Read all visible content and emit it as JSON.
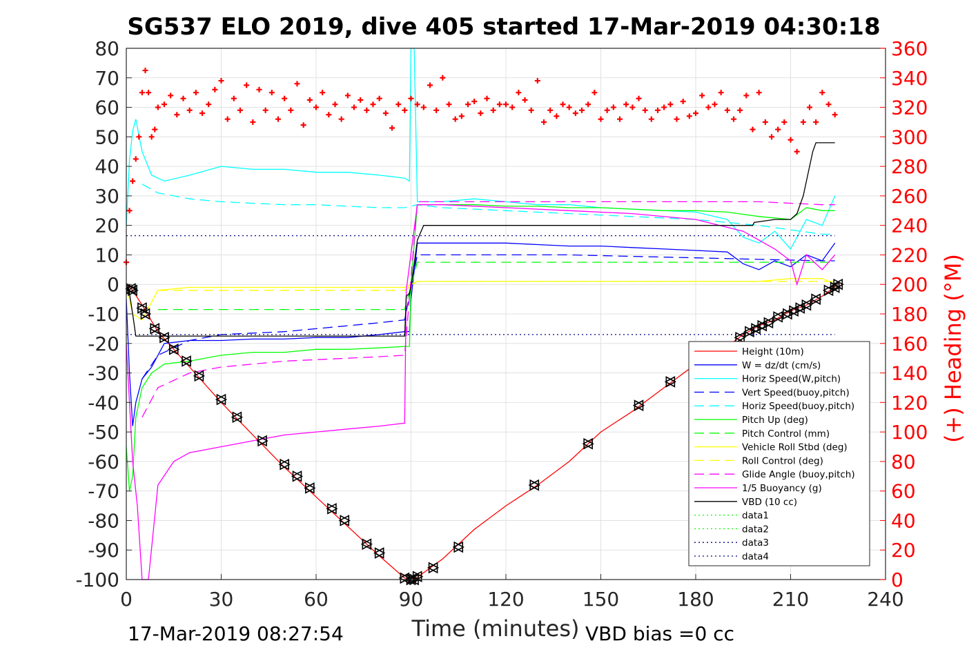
{
  "chart_data": {
    "type": "line",
    "title": "SG537 ELO 2019, dive 405 started 17-Mar-2019 04:30:18",
    "xlabel": "Time (minutes)",
    "ylabel_right": "(+) Heading (°M)",
    "xlim": [
      0,
      240
    ],
    "ylim": [
      -100,
      80
    ],
    "ylim_right": [
      0,
      360
    ],
    "x_ticks": [
      "0",
      "30",
      "60",
      "90",
      "120",
      "150",
      "180",
      "210",
      "240"
    ],
    "y_ticks_left": [
      "80",
      "70",
      "60",
      "50",
      "40",
      "30",
      "20",
      "10",
      "0",
      "-10",
      "-20",
      "-30",
      "-40",
      "-50",
      "-60",
      "-70",
      "-80",
      "-90",
      "-100"
    ],
    "y_ticks_right": [
      "360",
      "340",
      "320",
      "300",
      "280",
      "260",
      "240",
      "220",
      "200",
      "180",
      "160",
      "140",
      "120",
      "100",
      "80",
      "60",
      "40",
      "20",
      "0"
    ],
    "grid": true,
    "legend_position": "bottom-right",
    "footer_left": "17-Mar-2019 08:27:54",
    "footer_right": "VBD bias =0 cc",
    "colors": {
      "height": "#ff0000",
      "w": "#0000ff",
      "hspeed": "#00ffff",
      "pitch": "#00ff00",
      "roll": "#ffff00",
      "glide": "#ff00ff",
      "vbd": "#000000",
      "heading": "#ff0000",
      "data3": "#000080",
      "data4": "#000080"
    },
    "series": [
      {
        "name": "Height (10m)",
        "style": "solid",
        "color": "#ff0000",
        "x": [
          0,
          2,
          5,
          10,
          20,
          30,
          40,
          50,
          60,
          70,
          80,
          88,
          91,
          100,
          110,
          120,
          130,
          140,
          150,
          160,
          170,
          180,
          190,
          195,
          200,
          205,
          210,
          215,
          220,
          225
        ],
        "y": [
          0,
          -2,
          -7,
          -16,
          -28,
          -40,
          -51,
          -62,
          -72,
          -82,
          -92,
          -99.5,
          -100,
          -93,
          -83,
          -75,
          -68,
          -60,
          -50,
          -43,
          -35,
          -27,
          -21,
          -17,
          -14,
          -12,
          -9,
          -7,
          -4,
          0
        ]
      },
      {
        "name": "W = dz/dt (cm/s)",
        "style": "solid",
        "color": "#0000ff",
        "x": [
          0,
          1,
          2,
          3,
          5,
          8,
          12,
          20,
          30,
          40,
          50,
          60,
          70,
          80,
          88,
          89.5,
          90,
          92,
          100,
          110,
          120,
          130,
          140,
          150,
          160,
          170,
          180,
          190,
          195,
          200,
          205,
          210,
          215,
          220,
          224
        ],
        "y": [
          -5,
          -30,
          -48,
          -40,
          -32,
          -28,
          -20,
          -19,
          -19,
          -18.5,
          -18.5,
          -18,
          -18,
          -17,
          -16,
          -16,
          -5,
          14,
          14,
          14,
          14,
          13.5,
          13,
          13,
          12.5,
          12,
          11.5,
          11,
          7,
          5,
          8,
          6,
          10,
          8,
          14
        ]
      },
      {
        "name": "Horiz Speed(W,pitch)",
        "style": "solid",
        "color": "#00ffff",
        "x": [
          0,
          1,
          2,
          3,
          5,
          8,
          12,
          20,
          30,
          40,
          50,
          60,
          70,
          80,
          88,
          89.5,
          90,
          91,
          92,
          100,
          110,
          120,
          130,
          140,
          150,
          160,
          170,
          180,
          190,
          195,
          200,
          205,
          210,
          215,
          220,
          224
        ],
        "y": [
          20,
          42,
          52,
          56,
          45,
          37,
          35,
          37,
          40,
          39,
          39,
          38,
          38,
          37,
          36,
          35,
          80,
          80,
          28,
          28,
          29,
          28,
          27,
          27,
          26,
          25.5,
          25,
          24.5,
          22,
          16,
          14,
          18,
          12,
          22,
          20,
          30
        ]
      },
      {
        "name": "Vert Speed(buoy,pitch)",
        "style": "dashed",
        "color": "#0000ff",
        "x": [
          5,
          10,
          20,
          30,
          40,
          50,
          60,
          70,
          80,
          88,
          92,
          100,
          120,
          140,
          160,
          180,
          200,
          220,
          224
        ],
        "y": [
          -32,
          -24,
          -19,
          -17,
          -16.5,
          -16,
          -15,
          -14,
          -13,
          -12,
          10,
          10,
          10,
          10,
          9.5,
          9,
          8.5,
          8,
          8
        ]
      },
      {
        "name": "Horiz Speed(buoy,pitch)",
        "style": "dashed",
        "color": "#00ffff",
        "x": [
          5,
          10,
          20,
          30,
          40,
          50,
          60,
          70,
          80,
          88,
          92,
          100,
          120,
          140,
          160,
          180,
          200,
          220,
          224
        ],
        "y": [
          34,
          31,
          29,
          28,
          27.5,
          27,
          27,
          26.5,
          26,
          26,
          27,
          26,
          25,
          24,
          23,
          22,
          20,
          17,
          17
        ]
      },
      {
        "name": "Pitch Up (deg)",
        "style": "solid",
        "color": "#00ff00",
        "x": [
          0,
          1,
          2,
          3,
          5,
          8,
          12,
          20,
          30,
          40,
          50,
          60,
          70,
          80,
          88,
          89.5,
          90,
          92,
          100,
          110,
          120,
          130,
          140,
          150,
          160,
          170,
          180,
          190,
          200,
          210,
          215,
          220,
          224
        ],
        "y": [
          -55,
          -70,
          -65,
          -45,
          -35,
          -30,
          -27,
          -26,
          -24,
          -23,
          -23,
          -22,
          -22,
          -21.5,
          -21,
          -21,
          0,
          27,
          27,
          27,
          26.5,
          26.5,
          26,
          26,
          25.5,
          25,
          25,
          24.5,
          23,
          22,
          26,
          25,
          25
        ]
      },
      {
        "name": "Pitch Control (mm)",
        "style": "dashed",
        "color": "#00ff00",
        "x": [
          10,
          30,
          60,
          88,
          92,
          120,
          150,
          180,
          210,
          224
        ],
        "y": [
          -8.5,
          -8.5,
          -8.5,
          -8.5,
          7.5,
          7.5,
          7.5,
          7.5,
          7.5,
          7.5
        ]
      },
      {
        "name": "Vehicle Roll Stbd (deg)",
        "style": "solid",
        "color": "#ffff00",
        "x": [
          0,
          2,
          5,
          10,
          20,
          30,
          40,
          50,
          60,
          70,
          80,
          88,
          92,
          100,
          120,
          140,
          160,
          180,
          190,
          200,
          210,
          220,
          224
        ],
        "y": [
          0,
          -10,
          -12,
          -2,
          -1,
          -1,
          -1,
          -1,
          -1,
          -1,
          -1,
          -1,
          1,
          1,
          1,
          1,
          1,
          1,
          1,
          1,
          2,
          2,
          0
        ]
      },
      {
        "name": "Roll Control (deg)",
        "style": "dashed",
        "color": "#ffff00",
        "x": [
          10,
          30,
          60,
          88,
          92,
          120,
          150,
          180,
          210,
          224
        ],
        "y": [
          -2,
          -2,
          -2,
          -2,
          1,
          1,
          1,
          1,
          1,
          1
        ]
      },
      {
        "name": "Glide Angle (buoy,pitch)",
        "style": "dashed",
        "color": "#ff00ff",
        "x": [
          5,
          10,
          20,
          30,
          40,
          50,
          60,
          70,
          80,
          88,
          92,
          100,
          120,
          140,
          160,
          180,
          200,
          220,
          224
        ],
        "y": [
          -45,
          -35,
          -30,
          -28,
          -27,
          -26,
          -25.5,
          -25,
          -24.5,
          -24,
          28,
          28,
          28,
          28,
          28,
          28,
          28,
          27,
          27
        ]
      },
      {
        "name": "1/5 Buoyancy (g)",
        "style": "solid",
        "color": "#ff00ff",
        "x": [
          0,
          2,
          3.5,
          5,
          7,
          10,
          15,
          20,
          30,
          40,
          50,
          60,
          70,
          80,
          88,
          88.5,
          92,
          100,
          120,
          140,
          160,
          180,
          195,
          200,
          205,
          210,
          212,
          215,
          220,
          224
        ],
        "y": [
          -20,
          -60,
          -75,
          -100,
          -100,
          -68,
          -60,
          -57,
          -55,
          -53,
          -51,
          -50,
          -49,
          -48,
          -47,
          -2,
          27,
          27,
          26,
          25,
          24,
          22,
          18,
          15,
          12,
          8,
          0,
          10,
          5,
          10
        ]
      },
      {
        "name": "VBD (10 cc)",
        "style": "solid",
        "color": "#000000",
        "x": [
          0,
          1,
          2,
          3,
          10,
          30,
          60,
          88,
          88.5,
          89.5,
          90,
          92,
          94,
          120,
          150,
          180,
          190,
          198,
          198.5,
          205,
          210,
          212,
          214,
          216,
          217,
          218,
          224
        ],
        "y": [
          0,
          -3,
          -10,
          -17.5,
          -17.5,
          -17.5,
          -17.5,
          -17.5,
          -4,
          -3,
          -1,
          15,
          20,
          20,
          20,
          20,
          20,
          20,
          21,
          22,
          22,
          24,
          30,
          40,
          45,
          48,
          48
        ]
      },
      {
        "name": "data1",
        "style": "dotted",
        "color": "#00ff00",
        "x": [],
        "y": []
      },
      {
        "name": "data2",
        "style": "dotted",
        "color": "#00ff00",
        "x": [],
        "y": []
      },
      {
        "name": "data3",
        "style": "dotted",
        "color": "#000080",
        "x": [
          0,
          224
        ],
        "y": [
          16.5,
          16.5
        ]
      },
      {
        "name": "data4",
        "style": "dotted",
        "color": "#000080",
        "x": [
          0,
          224
        ],
        "y": [
          -17,
          -17
        ]
      }
    ],
    "heading": {
      "axis": "right",
      "marker": "+",
      "color": "#ff0000",
      "x": [
        0,
        1,
        2,
        3,
        4,
        5,
        6,
        7,
        8,
        9,
        10,
        12,
        14,
        16,
        18,
        20,
        22,
        24,
        26,
        28,
        30,
        32,
        34,
        36,
        38,
        40,
        42,
        44,
        46,
        48,
        50,
        52,
        54,
        56,
        58,
        60,
        62,
        64,
        66,
        68,
        70,
        72,
        74,
        76,
        78,
        80,
        82,
        84,
        86,
        88,
        90,
        92,
        94,
        96,
        98,
        100,
        102,
        104,
        106,
        108,
        110,
        112,
        114,
        116,
        118,
        120,
        122,
        124,
        126,
        128,
        130,
        132,
        134,
        136,
        138,
        140,
        142,
        144,
        146,
        148,
        150,
        152,
        154,
        156,
        158,
        160,
        162,
        164,
        166,
        168,
        170,
        172,
        174,
        176,
        178,
        180,
        182,
        184,
        186,
        188,
        190,
        192,
        194,
        196,
        198,
        200,
        202,
        204,
        206,
        208,
        210,
        212,
        214,
        216,
        218,
        220,
        222,
        224
      ],
      "y": [
        215,
        250,
        270,
        285,
        300,
        330,
        345,
        330,
        300,
        305,
        320,
        322,
        328,
        315,
        326,
        318,
        330,
        316,
        322,
        332,
        338,
        312,
        326,
        318,
        335,
        310,
        332,
        318,
        330,
        312,
        326,
        318,
        336,
        308,
        325,
        320,
        330,
        315,
        322,
        312,
        328,
        320,
        325,
        318,
        322,
        326,
        316,
        306,
        322,
        318,
        326,
        322,
        320,
        335,
        318,
        340,
        322,
        312,
        314,
        322,
        324,
        316,
        326,
        318,
        322,
        322,
        320,
        330,
        325,
        318,
        338,
        310,
        318,
        314,
        322,
        320,
        316,
        318,
        322,
        330,
        312,
        318,
        320,
        312,
        322,
        320,
        326,
        318,
        312,
        318,
        320,
        322,
        312,
        324,
        314,
        316,
        328,
        320,
        322,
        330,
        318,
        312,
        318,
        328,
        305,
        330,
        310,
        300,
        305,
        310,
        298,
        290,
        310,
        320,
        310,
        330,
        322,
        315
      ]
    },
    "markers": {
      "marker": "triangle",
      "color": "#000000",
      "x": [
        1.5,
        2,
        5,
        6,
        9,
        12,
        15,
        19,
        23,
        30,
        35,
        43,
        50,
        54,
        58,
        65,
        69,
        76,
        80,
        88,
        90,
        91,
        92,
        97,
        105,
        129,
        146,
        162,
        172,
        194,
        197,
        199,
        201,
        203,
        206,
        209,
        211,
        213,
        215,
        218,
        222,
        224,
        225
      ],
      "y": [
        -1.5,
        -2,
        -8,
        -10,
        -15,
        -18,
        -22,
        -26,
        -31,
        -39,
        -45,
        -53,
        -61,
        -65,
        -69,
        -76,
        -80,
        -88,
        -91,
        -99.5,
        -100,
        -100,
        -99,
        -96,
        -89,
        -68,
        -54,
        -41,
        -33,
        -18,
        -16,
        -15,
        -14,
        -13,
        -11,
        -10,
        -9,
        -8,
        -7,
        -5,
        -2,
        -1,
        0
      ]
    }
  }
}
